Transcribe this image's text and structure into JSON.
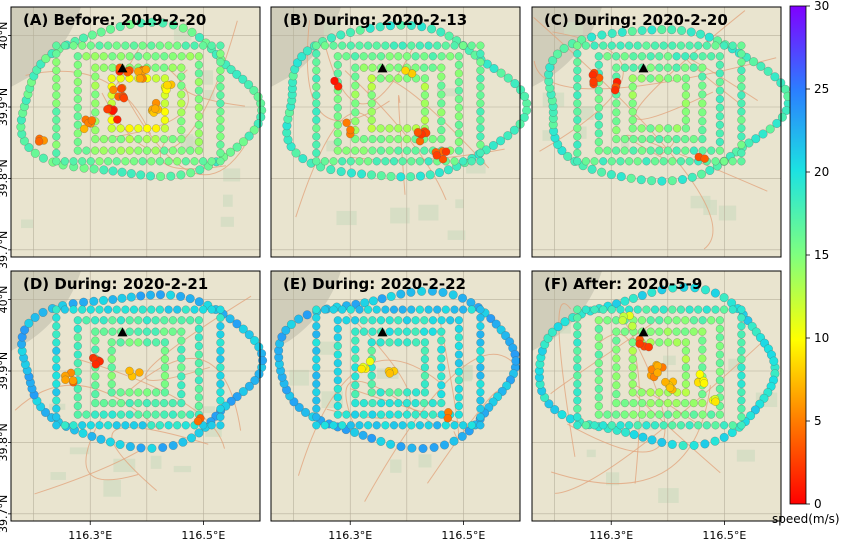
{
  "chart_data": {
    "type": "scatter",
    "panels": [
      {
        "title": "(A) Before: 2019-2-20",
        "ring_speeds": [
          17,
          16,
          15,
          14,
          11
        ],
        "slow_clusters": [
          {
            "lon": 116.36,
            "lat": 39.952,
            "speed": 3,
            "count": 5
          },
          {
            "lon": 116.39,
            "lat": 39.945,
            "speed": 6,
            "count": 6
          },
          {
            "lon": 116.35,
            "lat": 39.92,
            "speed": 4,
            "count": 7
          },
          {
            "lon": 116.34,
            "lat": 39.89,
            "speed": 2,
            "count": 5
          },
          {
            "lon": 116.41,
            "lat": 39.9,
            "speed": 7,
            "count": 6
          },
          {
            "lon": 116.3,
            "lat": 39.875,
            "speed": 6,
            "count": 5
          },
          {
            "lon": 116.22,
            "lat": 39.86,
            "speed": 5,
            "count": 3
          },
          {
            "lon": 116.44,
            "lat": 39.93,
            "speed": 9,
            "count": 4
          }
        ]
      },
      {
        "title": "(B) During: 2020-2-13",
        "ring_speeds": [
          18,
          17,
          16,
          15,
          14
        ],
        "slow_clusters": [
          {
            "lon": 116.28,
            "lat": 39.93,
            "speed": 1,
            "count": 2
          },
          {
            "lon": 116.43,
            "lat": 39.86,
            "speed": 3,
            "count": 6
          },
          {
            "lon": 116.46,
            "lat": 39.83,
            "speed": 3,
            "count": 5
          },
          {
            "lon": 116.3,
            "lat": 39.87,
            "speed": 6,
            "count": 3
          },
          {
            "lon": 116.4,
            "lat": 39.95,
            "speed": 9,
            "count": 3
          }
        ]
      },
      {
        "title": "(C) During: 2020-2-20",
        "ring_speeds": [
          18,
          17,
          17,
          16,
          15
        ],
        "slow_clusters": [
          {
            "lon": 116.27,
            "lat": 39.94,
            "speed": 3,
            "count": 5
          },
          {
            "lon": 116.3,
            "lat": 39.93,
            "speed": 2,
            "count": 3
          },
          {
            "lon": 116.46,
            "lat": 39.83,
            "speed": 4,
            "count": 2
          }
        ]
      },
      {
        "title": "(D) During: 2020-2-21",
        "ring_speeds": [
          22,
          20,
          18,
          17,
          16
        ],
        "slow_clusters": [
          {
            "lon": 116.31,
            "lat": 39.91,
            "speed": 1,
            "count": 5
          },
          {
            "lon": 116.26,
            "lat": 39.89,
            "speed": 5,
            "count": 5
          },
          {
            "lon": 116.38,
            "lat": 39.9,
            "speed": 8,
            "count": 3
          },
          {
            "lon": 116.49,
            "lat": 39.83,
            "speed": 5,
            "count": 2
          }
        ]
      },
      {
        "title": "(E) During: 2020-2-22",
        "ring_speeds": [
          22,
          21,
          20,
          19,
          18
        ],
        "slow_clusters": [
          {
            "lon": 116.33,
            "lat": 39.91,
            "speed": 10,
            "count": 4
          },
          {
            "lon": 116.37,
            "lat": 39.9,
            "speed": 9,
            "count": 3
          },
          {
            "lon": 116.48,
            "lat": 39.84,
            "speed": 5,
            "count": 2
          }
        ]
      },
      {
        "title": "(F) After: 2020-5-9",
        "ring_speeds": [
          20,
          18,
          16,
          15,
          14
        ],
        "slow_clusters": [
          {
            "lon": 116.36,
            "lat": 39.94,
            "speed": 3,
            "count": 4
          },
          {
            "lon": 116.38,
            "lat": 39.9,
            "speed": 6,
            "count": 8
          },
          {
            "lon": 116.4,
            "lat": 39.88,
            "speed": 8,
            "count": 5
          },
          {
            "lon": 116.46,
            "lat": 39.89,
            "speed": 9,
            "count": 5
          },
          {
            "lon": 116.48,
            "lat": 39.86,
            "speed": 10,
            "count": 3
          },
          {
            "lon": 116.33,
            "lat": 39.97,
            "speed": 11,
            "count": 4
          }
        ]
      }
    ],
    "ring_lon_halfwidths": [
      0.208,
      0.145,
      0.107,
      0.076,
      0.047
    ],
    "ring_lat_halfheights": [
      0.106,
      0.081,
      0.066,
      0.05,
      0.035
    ],
    "ring_center": {
      "lon": 116.385,
      "lat": 39.905
    },
    "marker": {
      "lon": 116.357,
      "lat": 39.954
    },
    "x_ticks": [
      {
        "value": 116.3,
        "label": "116.3°E"
      },
      {
        "value": 116.5,
        "label": "116.5°E"
      }
    ],
    "y_ticks": [
      {
        "value": 40.0,
        "label": "40°N"
      },
      {
        "value": 39.9,
        "label": "39.9°N"
      },
      {
        "value": 39.8,
        "label": "39.8°N"
      },
      {
        "value": 39.7,
        "label": "39.7°N"
      }
    ],
    "xlim": [
      116.16,
      116.6
    ],
    "ylim": [
      39.69,
      40.04
    ],
    "colorbar": {
      "label": "speed(m/s)",
      "min": 0,
      "max": 30,
      "ticks": [
        0,
        5,
        10,
        15,
        20,
        25,
        30
      ],
      "colormap": "rainbow_r"
    },
    "colors": {
      "map_base": "#e9e4cf",
      "road": "#e2a27a",
      "park": "#cfdcc1"
    }
  }
}
